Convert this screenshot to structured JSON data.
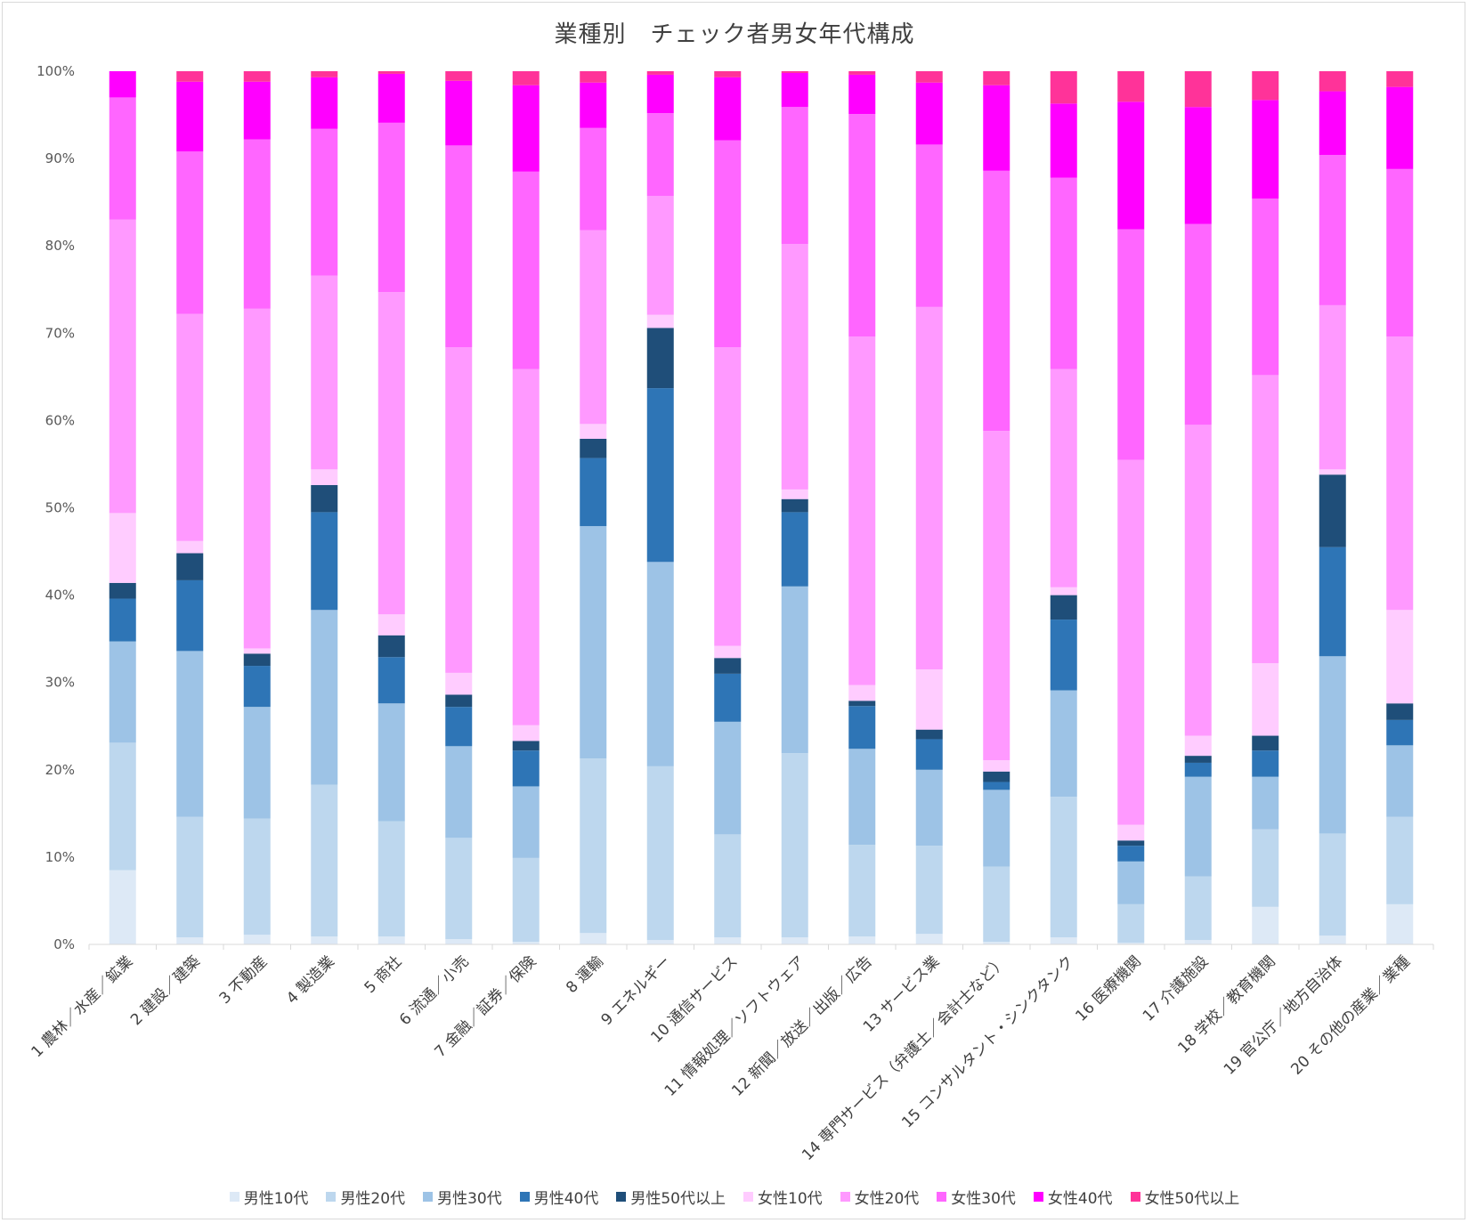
{
  "chart_data": {
    "type": "bar",
    "stacked": true,
    "percent": true,
    "title": "業種別　チェック者男女年代構成",
    "ylim": [
      0,
      100
    ],
    "yticks": [
      "0%",
      "10%",
      "20%",
      "30%",
      "40%",
      "50%",
      "60%",
      "70%",
      "80%",
      "90%",
      "100%"
    ],
    "grid": false,
    "legend_position": "bottom",
    "categories": [
      "1 農林／水産／鉱業",
      "2 建設／建築",
      "3 不動産",
      "4 製造業",
      "5 商社",
      "6 流通／小売",
      "7 金融／証券／保険",
      "8 運輸",
      "9 エネルギー",
      "10 通信サービス",
      "11 情報処理／ソフトウェア",
      "12 新聞／放送／出版／広告",
      "13 サービス業",
      "14 専門サービス（弁護士／会計士など）",
      "15 コンサルタント・シンクタンク",
      "16 医療機関",
      "17 介護施設",
      "18 学校／教育機関",
      "19 官公庁／地方自治体",
      "20 その他の産業／業種"
    ],
    "series": [
      {
        "name": "男性10代",
        "color": "#dde9f6",
        "values": [
          8.5,
          0.8,
          1.1,
          0.9,
          0.9,
          0.6,
          0.3,
          1.3,
          0.5,
          0.8,
          0.8,
          0.9,
          1.2,
          0.3,
          0.8,
          0.2,
          0.5,
          4.3,
          1.0,
          4.6
        ]
      },
      {
        "name": "男性20代",
        "color": "#bdd7ee",
        "values": [
          14.6,
          13.8,
          13.3,
          17.4,
          13.2,
          11.6,
          9.6,
          20.0,
          19.9,
          11.8,
          21.1,
          10.5,
          10.1,
          8.6,
          16.1,
          4.4,
          7.3,
          8.9,
          11.7,
          10.0
        ]
      },
      {
        "name": "男性30代",
        "color": "#9dc3e6",
        "values": [
          11.6,
          19.0,
          12.8,
          20.0,
          13.5,
          10.5,
          8.2,
          26.6,
          23.4,
          12.9,
          19.1,
          11.0,
          8.7,
          8.8,
          12.2,
          4.9,
          11.4,
          6.0,
          20.3,
          8.2
        ]
      },
      {
        "name": "男性40代",
        "color": "#2e75b6",
        "values": [
          4.9,
          8.1,
          4.7,
          11.2,
          5.3,
          4.5,
          4.1,
          7.8,
          19.9,
          5.5,
          8.5,
          4.9,
          3.5,
          0.9,
          8.1,
          1.8,
          1.6,
          3.0,
          12.5,
          2.9
        ]
      },
      {
        "name": "男性50代以上",
        "color": "#1f4e79",
        "values": [
          1.8,
          3.1,
          1.4,
          3.1,
          2.5,
          1.4,
          1.1,
          2.2,
          6.9,
          1.8,
          1.5,
          0.6,
          1.1,
          1.2,
          2.8,
          0.6,
          0.8,
          1.7,
          8.3,
          1.9
        ]
      },
      {
        "name": "女性10代",
        "color": "#ffccff",
        "values": [
          8.0,
          1.4,
          0.6,
          1.8,
          2.4,
          2.5,
          1.8,
          1.7,
          1.5,
          1.4,
          1.1,
          1.8,
          6.9,
          1.3,
          0.9,
          1.8,
          2.3,
          8.3,
          0.6,
          10.7
        ]
      },
      {
        "name": "女性20代",
        "color": "#ff99ff",
        "values": [
          33.6,
          26.0,
          38.9,
          22.2,
          36.9,
          37.3,
          40.8,
          22.2,
          13.6,
          34.2,
          28.1,
          39.9,
          41.5,
          37.7,
          25.0,
          41.8,
          35.6,
          33.0,
          18.8,
          31.3
        ]
      },
      {
        "name": "女性30代",
        "color": "#ff66ff",
        "values": [
          14.0,
          18.6,
          19.4,
          16.8,
          19.4,
          23.1,
          22.6,
          11.7,
          9.5,
          23.7,
          15.7,
          25.5,
          18.6,
          29.8,
          21.9,
          26.4,
          23.0,
          20.2,
          17.2,
          19.2
        ]
      },
      {
        "name": "女性40代",
        "color": "#ff00ff",
        "values": [
          3.0,
          8.0,
          6.6,
          5.9,
          5.6,
          7.4,
          9.9,
          5.2,
          4.4,
          7.2,
          3.9,
          4.5,
          7.1,
          9.8,
          8.5,
          14.6,
          13.4,
          11.3,
          7.3,
          9.4
        ]
      },
      {
        "name": "女性50代以上",
        "color": "#ff3399",
        "values": [
          0.0,
          1.2,
          1.2,
          0.7,
          0.3,
          1.1,
          1.6,
          1.3,
          0.4,
          0.7,
          0.2,
          0.4,
          1.3,
          1.6,
          3.7,
          3.5,
          4.1,
          3.3,
          2.3,
          1.8
        ]
      }
    ]
  }
}
